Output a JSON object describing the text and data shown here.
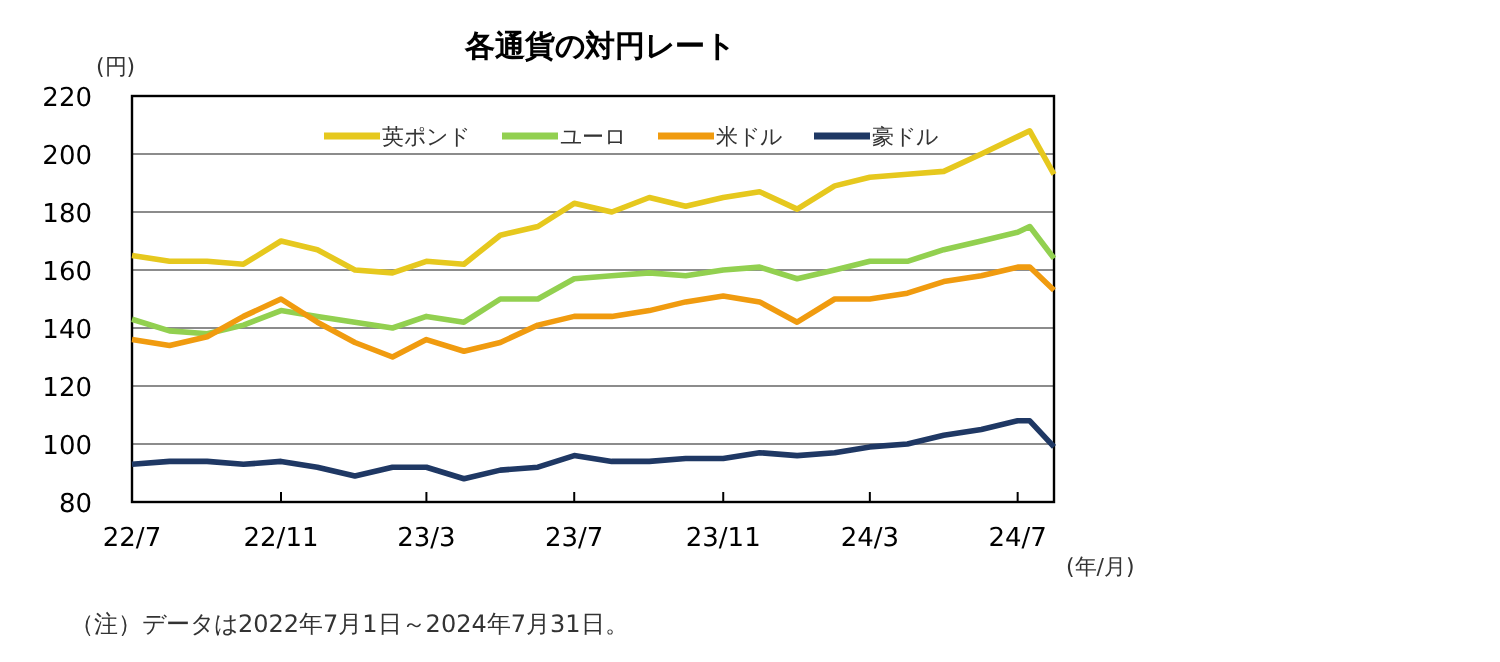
{
  "chart_data": {
    "type": "line",
    "title": "各通貨の対円レート",
    "ylabel": "(円)",
    "xlabel": "(年/月)",
    "x": [
      "2022-07-01",
      "2022-08-01",
      "2022-09-01",
      "2022-10-01",
      "2022-11-01",
      "2022-12-01",
      "2023-01-01",
      "2023-02-01",
      "2023-03-01",
      "2023-04-01",
      "2023-05-01",
      "2023-06-01",
      "2023-07-01",
      "2023-08-01",
      "2023-09-01",
      "2023-10-01",
      "2023-11-01",
      "2023-12-01",
      "2024-01-01",
      "2024-02-01",
      "2024-03-01",
      "2024-04-01",
      "2024-05-01",
      "2024-06-01",
      "2024-07-01",
      "2024-07-11",
      "2024-07-31"
    ],
    "xlim": [
      "2022-07-01",
      "2024-07-31"
    ],
    "xticks": [
      {
        "value": "2022-07-01",
        "label": "22/7"
      },
      {
        "value": "2022-11-01",
        "label": "22/11"
      },
      {
        "value": "2023-03-01",
        "label": "23/3"
      },
      {
        "value": "2023-07-01",
        "label": "23/7"
      },
      {
        "value": "2023-11-01",
        "label": "23/11"
      },
      {
        "value": "2024-03-01",
        "label": "24/3"
      },
      {
        "value": "2024-07-01",
        "label": "24/7"
      }
    ],
    "ylim": [
      80,
      220
    ],
    "yticks": [
      80,
      100,
      120,
      140,
      160,
      180,
      200,
      220
    ],
    "grid": "y",
    "legend": "top",
    "series": [
      {
        "name": "英ポンド",
        "color": "#e6c81e",
        "values": [
          165,
          163,
          163,
          162,
          170,
          167,
          160,
          159,
          163,
          162,
          172,
          175,
          183,
          180,
          185,
          182,
          185,
          187,
          181,
          189,
          192,
          193,
          194,
          200,
          206,
          208,
          193
        ]
      },
      {
        "name": "ユーロ",
        "color": "#92d050",
        "values": [
          143,
          139,
          138,
          141,
          146,
          144,
          142,
          140,
          144,
          142,
          150,
          150,
          157,
          158,
          159,
          158,
          160,
          161,
          157,
          160,
          163,
          163,
          167,
          170,
          173,
          175,
          164
        ]
      },
      {
        "name": "米ドル",
        "color": "#f09b0f",
        "values": [
          136,
          134,
          137,
          144,
          150,
          142,
          135,
          130,
          136,
          132,
          135,
          141,
          144,
          144,
          146,
          149,
          151,
          149,
          142,
          150,
          150,
          152,
          156,
          158,
          161,
          161,
          153
        ]
      },
      {
        "name": "豪ドル",
        "color": "#1f3864",
        "values": [
          93,
          94,
          94,
          93,
          94,
          92,
          89,
          92,
          92,
          88,
          91,
          92,
          96,
          94,
          94,
          95,
          95,
          97,
          96,
          97,
          99,
          100,
          103,
          105,
          108,
          108,
          99
        ]
      }
    ],
    "annotations": [
      "（注）データは2022年7月1日～2024年7月31日。"
    ]
  }
}
